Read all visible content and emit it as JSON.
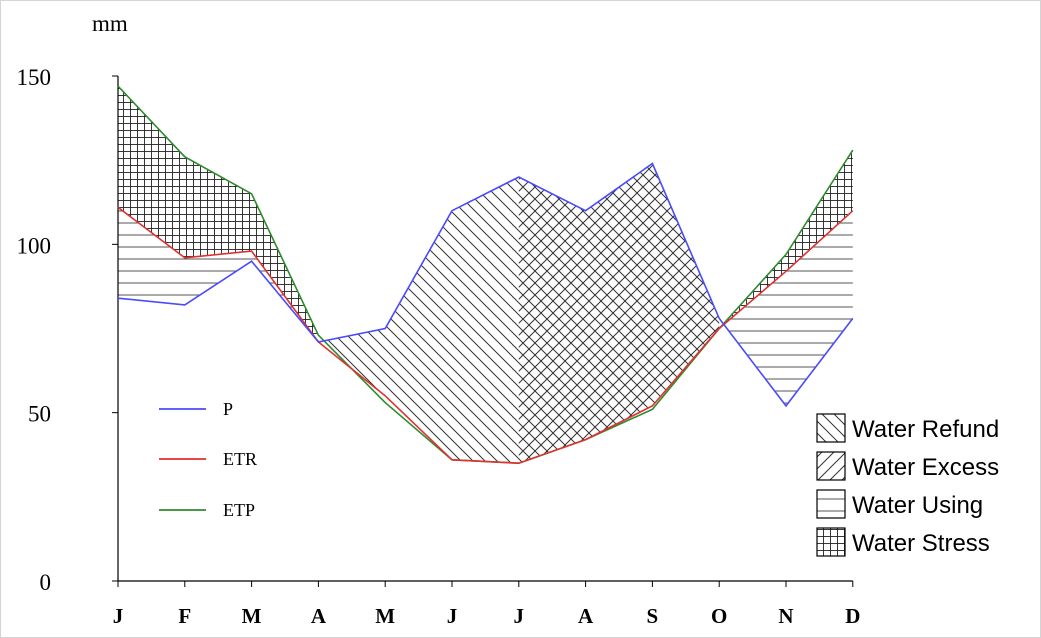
{
  "chart_data": {
    "type": "line",
    "ylabel": "mm",
    "categories": [
      "J",
      "F",
      "M",
      "A",
      "M",
      "J",
      "J",
      "A",
      "S",
      "O",
      "N",
      "D"
    ],
    "ylim": [
      0,
      150
    ],
    "yticks": [
      0,
      50,
      100,
      150
    ],
    "series": [
      {
        "name": "P",
        "color": "#4a4aff",
        "values": [
          84,
          82,
          95,
          71,
          75,
          110,
          120,
          110,
          124,
          78,
          52,
          78
        ]
      },
      {
        "name": "ETR",
        "color": "#e03030",
        "values": [
          111,
          96,
          98,
          71,
          55,
          36,
          35,
          42,
          52,
          75,
          92,
          110
        ]
      },
      {
        "name": "ETP",
        "color": "#2e8b2e",
        "values": [
          147,
          126,
          115,
          73,
          53,
          36,
          35,
          42,
          51,
          75,
          97,
          128
        ]
      }
    ],
    "region_legend": [
      {
        "label": "Water Refund",
        "pattern": "diag-down"
      },
      {
        "label": "Water Excess",
        "pattern": "diag-up"
      },
      {
        "label": "Water Using",
        "pattern": "horizontal"
      },
      {
        "label": "Water Stress",
        "pattern": "grid"
      }
    ]
  }
}
